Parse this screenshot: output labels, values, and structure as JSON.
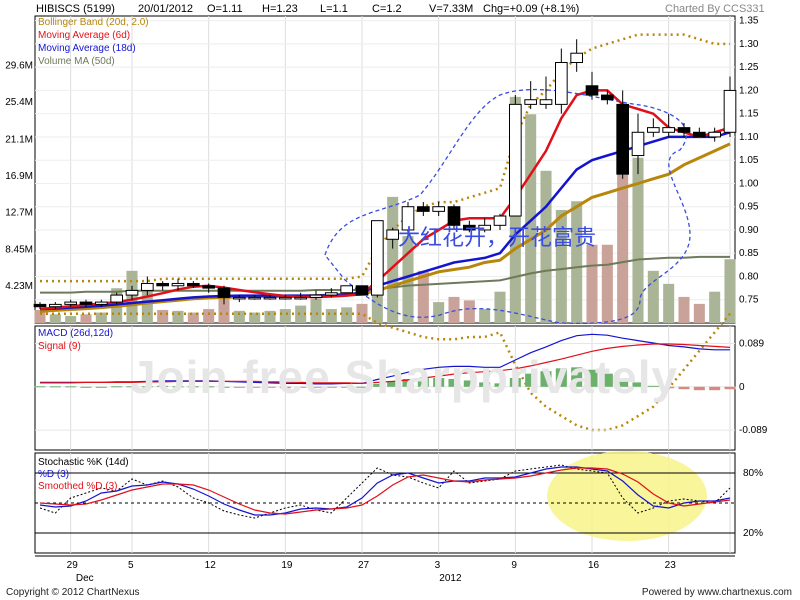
{
  "header": {
    "symbol": "HIBISCS (5199)",
    "date": "20/01/2012",
    "open": "O=1.11",
    "high": "H=1.23",
    "low": "L=1.1",
    "close": "C=1.2",
    "volume": "V=7.33M",
    "change": "Chg=+0.09 (+8.1%)",
    "charted_by": "Charted By CCS331"
  },
  "watermark": "Join free Sharpprivately",
  "annotation": "大红花开，开花富贵",
  "footer": {
    "copyright": "Copyright © 2012 ChartNexus",
    "powered": "Powered by www.chartnexus.com"
  },
  "colors": {
    "up_candle": "#ffffff",
    "down_candle": "#000000",
    "bollinger": "#b8860b",
    "ma6": "#e0101a",
    "ma18": "#1414d0",
    "ma50_vol": "#6e7a5a",
    "volume_up": "#a9b596",
    "volume_down": "#c9a39a",
    "annotation": "#3a4de0",
    "highlight": "#f7f38a"
  },
  "chart_data": [
    {
      "type": "candlestick",
      "panel": "price",
      "legend": [
        {
          "label": "Bollinger Band (20d, 2.0)",
          "color": "#b8860b"
        },
        {
          "label": "Moving Average (6d)",
          "color": "#e0101a"
        },
        {
          "label": "Moving Average (18d)",
          "color": "#1414d0"
        },
        {
          "label": "Volume MA (50d)",
          "color": "#6e7a5a"
        }
      ],
      "x_ticks": [
        "29",
        "Dec",
        "5",
        "12",
        "19",
        "27",
        "3",
        "2012",
        "9",
        "16",
        "23"
      ],
      "y_ticks": [
        "1.35",
        "1.30",
        "1.25",
        "1.20",
        "1.15",
        "1.10",
        "1.05",
        "1.00",
        "0.95",
        "0.90",
        "0.85",
        "0.80",
        "0.75"
      ],
      "ylim": [
        0.7,
        1.36
      ],
      "volume_ticks": [
        "29.6M",
        "25.4M",
        "21.1M",
        "16.9M",
        "12.7M",
        "8.45M",
        "4.23M"
      ],
      "volume_lim": [
        0,
        33
      ],
      "ohlc": [
        [
          0.74,
          0.745,
          0.73,
          0.735
        ],
        [
          0.735,
          0.745,
          0.73,
          0.74
        ],
        [
          0.74,
          0.75,
          0.735,
          0.745
        ],
        [
          0.745,
          0.75,
          0.735,
          0.74
        ],
        [
          0.74,
          0.75,
          0.735,
          0.745
        ],
        [
          0.745,
          0.765,
          0.74,
          0.76
        ],
        [
          0.76,
          0.78,
          0.75,
          0.77
        ],
        [
          0.77,
          0.8,
          0.76,
          0.785
        ],
        [
          0.785,
          0.79,
          0.77,
          0.78
        ],
        [
          0.78,
          0.795,
          0.77,
          0.785
        ],
        [
          0.785,
          0.79,
          0.775,
          0.78
        ],
        [
          0.78,
          0.785,
          0.765,
          0.775
        ],
        [
          0.775,
          0.78,
          0.74,
          0.755
        ],
        [
          0.755,
          0.76,
          0.745,
          0.755
        ],
        [
          0.755,
          0.76,
          0.75,
          0.755
        ],
        [
          0.755,
          0.76,
          0.75,
          0.755
        ],
        [
          0.755,
          0.76,
          0.75,
          0.755
        ],
        [
          0.755,
          0.765,
          0.75,
          0.755
        ],
        [
          0.755,
          0.77,
          0.75,
          0.76
        ],
        [
          0.76,
          0.775,
          0.755,
          0.765
        ],
        [
          0.765,
          0.78,
          0.765,
          0.78
        ],
        [
          0.78,
          0.78,
          0.76,
          0.76
        ],
        [
          0.76,
          0.92,
          0.755,
          0.92
        ],
        [
          0.88,
          0.905,
          0.86,
          0.9
        ],
        [
          0.9,
          0.96,
          0.89,
          0.95
        ],
        [
          0.95,
          0.96,
          0.93,
          0.94
        ],
        [
          0.94,
          0.96,
          0.93,
          0.95
        ],
        [
          0.95,
          0.955,
          0.9,
          0.91
        ],
        [
          0.91,
          0.92,
          0.895,
          0.9
        ],
        [
          0.9,
          0.925,
          0.895,
          0.91
        ],
        [
          0.91,
          0.935,
          0.9,
          0.93
        ],
        [
          0.93,
          1.19,
          0.93,
          1.17
        ],
        [
          1.17,
          1.22,
          1.16,
          1.18
        ],
        [
          1.17,
          1.23,
          1.16,
          1.18
        ],
        [
          1.17,
          1.29,
          1.15,
          1.26
        ],
        [
          1.26,
          1.31,
          1.24,
          1.28
        ],
        [
          1.21,
          1.24,
          1.18,
          1.19
        ],
        [
          1.19,
          1.2,
          1.17,
          1.18
        ],
        [
          1.17,
          1.2,
          1.01,
          1.02
        ],
        [
          1.06,
          1.15,
          1.02,
          1.11
        ],
        [
          1.11,
          1.14,
          1.1,
          1.12
        ],
        [
          1.11,
          1.15,
          1.1,
          1.12
        ],
        [
          1.12,
          1.13,
          1.1,
          1.11
        ],
        [
          1.11,
          1.12,
          1.1,
          1.1
        ],
        [
          1.1,
          1.12,
          1.09,
          1.11
        ],
        [
          1.11,
          1.23,
          1.1,
          1.2
        ]
      ],
      "volume": [
        1.5,
        1.0,
        0.8,
        1.0,
        1.2,
        4.0,
        6.0,
        4.5,
        1.5,
        1.4,
        1.2,
        1.6,
        3.0,
        1.4,
        1.2,
        1.4,
        1.6,
        2.0,
        2.8,
        1.6,
        1.8,
        2.2,
        3.4,
        14.5,
        10.0,
        6.0,
        2.4,
        3.0,
        2.6,
        1.6,
        3.6,
        26.0,
        24.0,
        17.5,
        13.0,
        14.0,
        9.0,
        9.0,
        25.0,
        19.0,
        6.0,
        4.5,
        3.0,
        2.2,
        3.6,
        7.33
      ],
      "bollinger_upper": [
        0.79,
        0.79,
        0.79,
        0.79,
        0.79,
        0.79,
        0.79,
        0.79,
        0.795,
        0.795,
        0.795,
        0.795,
        0.795,
        0.795,
        0.795,
        0.795,
        0.795,
        0.795,
        0.795,
        0.795,
        0.795,
        0.8,
        0.86,
        0.9,
        0.93,
        0.95,
        0.96,
        0.96,
        0.97,
        0.98,
        0.99,
        1.1,
        1.17,
        1.2,
        1.24,
        1.27,
        1.29,
        1.3,
        1.31,
        1.32,
        1.32,
        1.32,
        1.32,
        1.31,
        1.3,
        1.3
      ],
      "bollinger_lower": [
        0.72,
        0.72,
        0.72,
        0.72,
        0.72,
        0.72,
        0.72,
        0.72,
        0.72,
        0.72,
        0.72,
        0.72,
        0.72,
        0.72,
        0.72,
        0.72,
        0.72,
        0.72,
        0.72,
        0.72,
        0.72,
        0.72,
        0.7,
        0.69,
        0.68,
        0.67,
        0.665,
        0.665,
        0.67,
        0.67,
        0.68,
        0.61,
        0.55,
        0.52,
        0.5,
        0.48,
        0.47,
        0.47,
        0.48,
        0.5,
        0.52,
        0.56,
        0.6,
        0.64,
        0.68,
        0.72
      ],
      "bollinger_mid": [
        0.725,
        0.727,
        0.729,
        0.731,
        0.733,
        0.736,
        0.739,
        0.743,
        0.746,
        0.749,
        0.752,
        0.754,
        0.755,
        0.756,
        0.757,
        0.757,
        0.757,
        0.758,
        0.759,
        0.76,
        0.761,
        0.762,
        0.77,
        0.78,
        0.79,
        0.8,
        0.81,
        0.815,
        0.82,
        0.83,
        0.835,
        0.86,
        0.88,
        0.9,
        0.93,
        0.95,
        0.97,
        0.98,
        0.99,
        1.0,
        1.01,
        1.02,
        1.04,
        1.055,
        1.07,
        1.085
      ],
      "ma6": [
        0.73,
        0.733,
        0.736,
        0.739,
        0.742,
        0.745,
        0.75,
        0.757,
        0.764,
        0.772,
        0.778,
        0.78,
        0.776,
        0.771,
        0.766,
        0.762,
        0.758,
        0.756,
        0.756,
        0.757,
        0.759,
        0.762,
        0.79,
        0.82,
        0.85,
        0.88,
        0.9,
        0.92,
        0.925,
        0.925,
        0.925,
        0.97,
        1.02,
        1.07,
        1.14,
        1.19,
        1.2,
        1.2,
        1.17,
        1.16,
        1.15,
        1.12,
        1.11,
        1.1,
        1.11,
        1.12
      ],
      "ma18": [
        0.73,
        0.731,
        0.733,
        0.735,
        0.737,
        0.74,
        0.743,
        0.746,
        0.749,
        0.752,
        0.755,
        0.757,
        0.758,
        0.759,
        0.759,
        0.759,
        0.759,
        0.759,
        0.759,
        0.76,
        0.762,
        0.765,
        0.78,
        0.79,
        0.8,
        0.81,
        0.82,
        0.83,
        0.835,
        0.84,
        0.85,
        0.89,
        0.92,
        0.95,
        0.99,
        1.03,
        1.05,
        1.06,
        1.07,
        1.08,
        1.09,
        1.1,
        1.1,
        1.1,
        1.1,
        1.11
      ],
      "volume_ma50": [
        3.5,
        3.5,
        3.5,
        3.6,
        3.6,
        3.6,
        3.7,
        3.7,
        3.7,
        3.7,
        3.7,
        3.7,
        3.7,
        3.7,
        3.7,
        3.7,
        3.7,
        3.7,
        3.8,
        3.8,
        3.8,
        3.8,
        3.9,
        4.1,
        4.3,
        4.4,
        4.5,
        4.6,
        4.7,
        4.8,
        4.9,
        5.3,
        5.7,
        6.0,
        6.2,
        6.4,
        6.6,
        6.7,
        7.0,
        7.3,
        7.4,
        7.5,
        7.5,
        7.6,
        7.6,
        7.6
      ]
    },
    {
      "type": "line",
      "panel": "macd",
      "legend": [
        {
          "label": "MACD (26d,12d)",
          "color": "#1414d0"
        },
        {
          "label": "Signal (9)",
          "color": "#e0101a"
        }
      ],
      "y_ticks": [
        "0.089",
        "0",
        "-0.089"
      ],
      "ylim": [
        -0.13,
        0.125
      ],
      "macd": [
        0.009,
        0.009,
        0.009,
        0.009,
        0.009,
        0.01,
        0.01,
        0.011,
        0.012,
        0.012,
        0.012,
        0.012,
        0.011,
        0.01,
        0.009,
        0.008,
        0.007,
        0.007,
        0.006,
        0.006,
        0.007,
        0.007,
        0.015,
        0.022,
        0.03,
        0.036,
        0.04,
        0.042,
        0.042,
        0.04,
        0.04,
        0.055,
        0.07,
        0.082,
        0.095,
        0.105,
        0.108,
        0.106,
        0.1,
        0.095,
        0.09,
        0.085,
        0.082,
        0.078,
        0.076,
        0.076
      ],
      "signal": [
        0.008,
        0.008,
        0.008,
        0.009,
        0.009,
        0.009,
        0.009,
        0.01,
        0.01,
        0.011,
        0.011,
        0.011,
        0.011,
        0.011,
        0.011,
        0.01,
        0.01,
        0.009,
        0.008,
        0.008,
        0.008,
        0.007,
        0.009,
        0.011,
        0.014,
        0.018,
        0.022,
        0.026,
        0.029,
        0.031,
        0.033,
        0.037,
        0.043,
        0.05,
        0.057,
        0.065,
        0.073,
        0.079,
        0.083,
        0.086,
        0.088,
        0.088,
        0.087,
        0.085,
        0.083,
        0.081
      ],
      "histogram": [
        0.001,
        0.001,
        0.001,
        0.0,
        0.0,
        0.001,
        0.001,
        0.001,
        0.002,
        0.001,
        0.001,
        0.001,
        0.0,
        -0.001,
        -0.002,
        -0.002,
        -0.003,
        -0.002,
        -0.002,
        -0.002,
        -0.001,
        0.0,
        0.006,
        0.011,
        0.016,
        0.018,
        0.018,
        0.016,
        0.013,
        0.009,
        0.007,
        0.018,
        0.027,
        0.032,
        0.038,
        0.04,
        0.035,
        0.027,
        0.017,
        0.009,
        0.002,
        -0.003,
        -0.005,
        -0.007,
        -0.007,
        -0.005
      ]
    },
    {
      "type": "line",
      "panel": "stochastic",
      "legend": [
        {
          "label": "Stochastic %K (14d)",
          "color": "#000000"
        },
        {
          "label": "%D (3)",
          "color": "#1414d0"
        },
        {
          "label": "Smoothed %D (3)",
          "color": "#e0101a"
        }
      ],
      "y_ticks": [
        "80%",
        "20%"
      ],
      "ylim": [
        0,
        100
      ],
      "k": [
        45,
        40,
        55,
        60,
        65,
        62,
        74,
        68,
        72,
        66,
        55,
        50,
        42,
        38,
        35,
        40,
        45,
        48,
        43,
        40,
        55,
        70,
        85,
        78,
        76,
        70,
        65,
        82,
        70,
        72,
        74,
        82,
        84,
        86,
        88,
        84,
        82,
        80,
        55,
        40,
        45,
        52,
        54,
        52,
        50,
        65
      ],
      "d": [
        48,
        46,
        47,
        52,
        60,
        62,
        67,
        68,
        71,
        69,
        64,
        57,
        49,
        43,
        38,
        38,
        40,
        44,
        45,
        44,
        46,
        55,
        70,
        78,
        80,
        75,
        70,
        72,
        72,
        75,
        75,
        76,
        80,
        84,
        86,
        86,
        84,
        82,
        72,
        58,
        47,
        45,
        50,
        52,
        52,
        55
      ],
      "smoothed_d": [
        50,
        49,
        48,
        49,
        53,
        58,
        63,
        66,
        69,
        69,
        68,
        63,
        56,
        49,
        43,
        40,
        39,
        41,
        43,
        44,
        45,
        48,
        57,
        68,
        76,
        78,
        75,
        72,
        71,
        73,
        74,
        75,
        77,
        80,
        83,
        85,
        85,
        84,
        79,
        71,
        59,
        50,
        47,
        49,
        51,
        53
      ]
    }
  ]
}
